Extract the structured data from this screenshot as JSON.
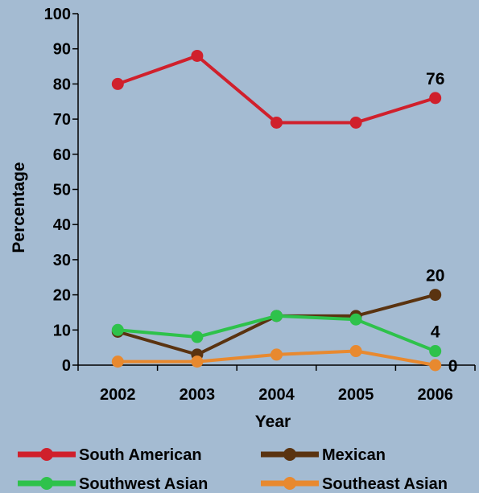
{
  "chart_data": {
    "type": "line",
    "xlabel": "Year",
    "ylabel": "Percentage",
    "x": [
      "2002",
      "2003",
      "2004",
      "2005",
      "2006"
    ],
    "ylim": [
      0,
      100
    ],
    "yticks": [
      "0",
      "10",
      "20",
      "30",
      "40",
      "50",
      "60",
      "70",
      "80",
      "90",
      "100"
    ],
    "grid": false,
    "legend_position": "bottom",
    "series": [
      {
        "name": "South American",
        "values": [
          80,
          88,
          69,
          69,
          76
        ],
        "color": "#d0202c"
      },
      {
        "name": "Mexican",
        "values": [
          9.5,
          3,
          14,
          14,
          20
        ],
        "color": "#5a3310"
      },
      {
        "name": "Southwest Asian",
        "values": [
          10,
          8,
          14,
          13,
          4
        ],
        "color": "#2ec24b"
      },
      {
        "name": "Southeast Asian",
        "values": [
          1,
          1,
          3,
          4,
          0
        ],
        "color": "#e8892f"
      }
    ],
    "annotations": [
      {
        "text": "76",
        "series": "South American",
        "x": "2006",
        "y": 76
      },
      {
        "text": "20",
        "series": "Mexican",
        "x": "2006",
        "y": 20
      },
      {
        "text": "4",
        "series": "Southwest Asian",
        "x": "2006",
        "y": 4
      },
      {
        "text": "0",
        "series": "Southeast Asian",
        "x": "2006",
        "y": 0
      }
    ]
  }
}
